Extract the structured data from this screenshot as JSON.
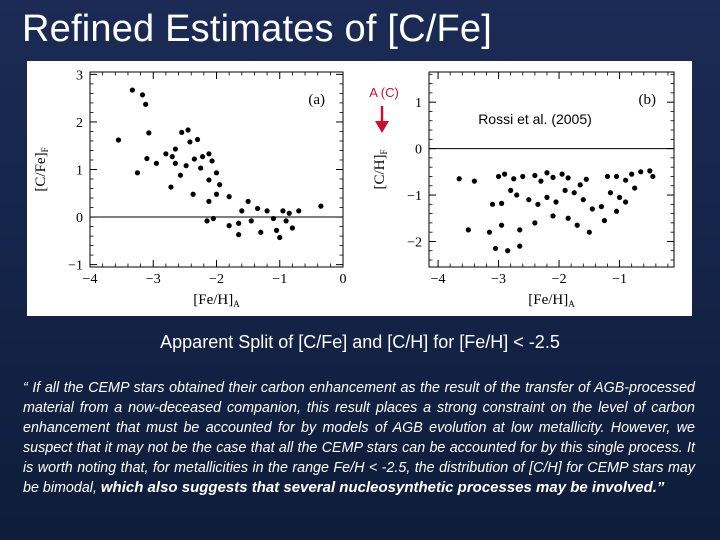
{
  "slide": {
    "title": "Refined Estimates of [C/Fe]",
    "caption": "Apparent Split of [C/Fe] and [C/H] for [Fe/H] < -2.5",
    "quote_part1": "“ If all the CEMP stars obtained their carbon enhancement as the result of the transfer of  AGB-processed material from a now-deceased companion, this result places a strong constraint on the level of carbon enhancement that must be accounted for by models of AGB evolution at low metallicity.  However, we suspect that it may not be the case that all the CEMP stars can be accounted for by this single process. It is worth noting that, for metallicities in the range Fe/H < -2.5, the distribution of [C/H] for CEMP stars may be bimodal, ",
    "quote_part2": "which also suggests that several nucleosynthetic processes may be involved.”"
  },
  "figure": {
    "annotation_arrow_label": "A (C)",
    "annotation_arrow_color": "#c8102e",
    "reference_label": "Rossi et al. (2005)"
  },
  "chart_data": [
    {
      "type": "scatter",
      "panel_label": "(a)",
      "xlabel_main": "[Fe/H]",
      "xlabel_sub": "A",
      "ylabel_main": "[C/Fe]",
      "ylabel_sub": "F",
      "xlim": [
        -4,
        0
      ],
      "ylim": [
        -1.05,
        3.05
      ],
      "xticks": [
        -4,
        -3,
        -2,
        -1,
        0
      ],
      "yticks": [
        -1,
        0,
        1,
        2,
        3
      ],
      "reference_line_y": 0,
      "points": [
        [
          -3.33,
          2.67
        ],
        [
          -3.17,
          2.57
        ],
        [
          -3.12,
          2.37
        ],
        [
          -3.07,
          1.77
        ],
        [
          -3.55,
          1.62
        ],
        [
          -3.1,
          1.23
        ],
        [
          -2.95,
          1.13
        ],
        [
          -3.25,
          0.93
        ],
        [
          -2.8,
          1.33
        ],
        [
          -2.65,
          1.43
        ],
        [
          -2.7,
          1.27
        ],
        [
          -2.55,
          1.78
        ],
        [
          -2.45,
          1.83
        ],
        [
          -2.42,
          1.58
        ],
        [
          -2.3,
          1.63
        ],
        [
          -2.22,
          1.27
        ],
        [
          -2.12,
          1.33
        ],
        [
          -2.35,
          1.22
        ],
        [
          -2.65,
          1.13
        ],
        [
          -2.48,
          1.08
        ],
        [
          -2.25,
          1.03
        ],
        [
          -2.07,
          1.18
        ],
        [
          -2.0,
          0.93
        ],
        [
          -2.12,
          0.78
        ],
        [
          -1.95,
          0.68
        ],
        [
          -2.72,
          0.63
        ],
        [
          -2.57,
          0.88
        ],
        [
          -2.37,
          0.48
        ],
        [
          -2.0,
          0.48
        ],
        [
          -2.12,
          0.33
        ],
        [
          -1.8,
          0.43
        ],
        [
          -1.5,
          0.33
        ],
        [
          -1.6,
          0.13
        ],
        [
          -1.35,
          0.18
        ],
        [
          -1.2,
          0.13
        ],
        [
          -0.95,
          0.13
        ],
        [
          -0.85,
          0.08
        ],
        [
          -0.7,
          0.13
        ],
        [
          -0.35,
          0.23
        ],
        [
          -1.1,
          -0.03
        ],
        [
          -1.45,
          -0.08
        ],
        [
          -1.65,
          -0.13
        ],
        [
          -1.8,
          -0.18
        ],
        [
          -2.05,
          -0.03
        ],
        [
          -2.15,
          -0.08
        ],
        [
          -0.9,
          -0.08
        ],
        [
          -1.3,
          -0.32
        ],
        [
          -1.65,
          -0.37
        ],
        [
          -1.05,
          -0.28
        ],
        [
          -0.8,
          -0.23
        ],
        [
          -1.0,
          -0.43
        ]
      ]
    },
    {
      "type": "scatter",
      "panel_label": "(b)",
      "xlabel_main": "[Fe/H]",
      "xlabel_sub": "A",
      "ylabel_main": "[C/H]",
      "ylabel_sub": "F",
      "xlim": [
        -4.15,
        -0.1
      ],
      "ylim": [
        -2.55,
        1.65
      ],
      "xticks": [
        -4,
        -3,
        -2,
        -1
      ],
      "yticks": [
        -2,
        -1,
        0,
        1
      ],
      "reference_line_y": 0,
      "points": [
        [
          -3.65,
          -0.65
        ],
        [
          -3.4,
          -0.7
        ],
        [
          -3.0,
          -0.6
        ],
        [
          -2.9,
          -0.55
        ],
        [
          -2.75,
          -0.65
        ],
        [
          -2.6,
          -0.6
        ],
        [
          -2.4,
          -0.58
        ],
        [
          -2.3,
          -0.7
        ],
        [
          -2.2,
          -0.52
        ],
        [
          -2.1,
          -0.62
        ],
        [
          -1.95,
          -0.55
        ],
        [
          -1.85,
          -0.63
        ],
        [
          -1.65,
          -0.78
        ],
        [
          -1.55,
          -0.66
        ],
        [
          -1.2,
          -0.6
        ],
        [
          -1.05,
          -0.6
        ],
        [
          -0.9,
          -0.68
        ],
        [
          -0.8,
          -0.55
        ],
        [
          -0.65,
          -0.5
        ],
        [
          -0.5,
          -0.48
        ],
        [
          -0.45,
          -0.6
        ],
        [
          -3.1,
          -1.2
        ],
        [
          -2.95,
          -1.18
        ],
        [
          -2.8,
          -0.9
        ],
        [
          -2.7,
          -1.0
        ],
        [
          -2.5,
          -1.1
        ],
        [
          -2.35,
          -1.2
        ],
        [
          -2.2,
          -1.05
        ],
        [
          -2.05,
          -1.15
        ],
        [
          -1.9,
          -0.9
        ],
        [
          -1.75,
          -0.95
        ],
        [
          -1.6,
          -1.1
        ],
        [
          -1.45,
          -1.3
        ],
        [
          -1.3,
          -1.25
        ],
        [
          -1.15,
          -0.95
        ],
        [
          -1.0,
          -1.05
        ],
        [
          -0.9,
          -1.15
        ],
        [
          -0.75,
          -0.85
        ],
        [
          -3.5,
          -1.75
        ],
        [
          -3.15,
          -1.8
        ],
        [
          -2.95,
          -1.65
        ],
        [
          -2.65,
          -1.75
        ],
        [
          -2.4,
          -1.6
        ],
        [
          -2.1,
          -1.45
        ],
        [
          -1.85,
          -1.5
        ],
        [
          -1.7,
          -1.65
        ],
        [
          -1.5,
          -1.8
        ],
        [
          -1.25,
          -1.55
        ],
        [
          -1.05,
          -1.35
        ],
        [
          -3.05,
          -2.15
        ],
        [
          -2.85,
          -2.2
        ],
        [
          -2.65,
          -2.1
        ]
      ]
    }
  ]
}
